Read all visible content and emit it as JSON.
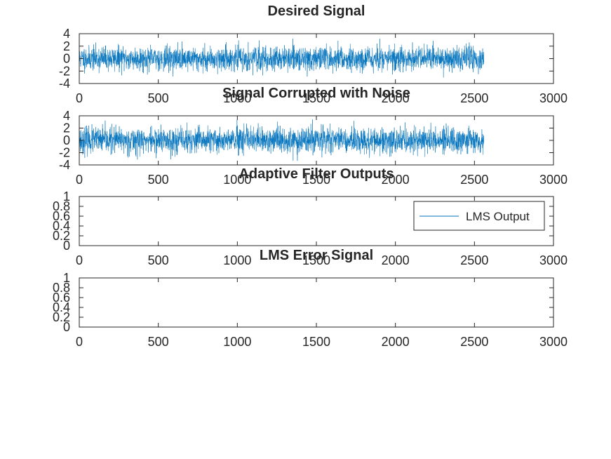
{
  "chart_data": [
    {
      "type": "line",
      "title": "Desired Signal",
      "xlabel": "",
      "ylabel": "",
      "xlim": [
        0,
        3000
      ],
      "ylim": [
        -4,
        4
      ],
      "xticks": [
        "0",
        "500",
        "1000",
        "1500",
        "2000",
        "2500",
        "3000"
      ],
      "yticks": [
        "4",
        "2",
        "0",
        "-2",
        "-4"
      ],
      "grid": false,
      "series": [
        {
          "color": "#0072bd",
          "signal": {
            "n": 2560,
            "mean": 0,
            "std": 0.95,
            "min": -3.3,
            "max": 3.2,
            "seed": 11
          }
        }
      ]
    },
    {
      "type": "line",
      "title": "Signal Corrupted with Noise",
      "xlabel": "",
      "ylabel": "",
      "xlim": [
        0,
        3000
      ],
      "ylim": [
        -4,
        4
      ],
      "xticks": [
        "0",
        "500",
        "1000",
        "1500",
        "2000",
        "2500",
        "3000"
      ],
      "yticks": [
        "4",
        "2",
        "0",
        "-2",
        "-4"
      ],
      "grid": false,
      "series": [
        {
          "color": "#0072bd",
          "signal": {
            "n": 2560,
            "mean": 0,
            "std": 1.05,
            "min": -3.8,
            "max": 3.6,
            "seed": 23
          }
        }
      ]
    },
    {
      "type": "line",
      "title": "Adaptive Filter Outputs",
      "xlabel": "",
      "ylabel": "",
      "xlim": [
        0,
        3000
      ],
      "ylim": [
        0,
        1
      ],
      "xticks": [
        "0",
        "500",
        "1000",
        "1500",
        "2000",
        "2500",
        "3000"
      ],
      "yticks": [
        "1",
        "0.8",
        "0.6",
        "0.4",
        "0.2",
        "0"
      ],
      "grid": false,
      "legend_position": "top-right",
      "series": [
        {
          "name": "LMS Output",
          "color": "#0072bd",
          "values": []
        }
      ]
    },
    {
      "type": "line",
      "title": "LMS Error Signal",
      "xlabel": "",
      "ylabel": "",
      "xlim": [
        0,
        3000
      ],
      "ylim": [
        0,
        1
      ],
      "xticks": [
        "0",
        "500",
        "1000",
        "1500",
        "2000",
        "2500",
        "3000"
      ],
      "yticks": [
        "1",
        "0.8",
        "0.6",
        "0.4",
        "0.2",
        "0"
      ],
      "grid": false,
      "series": []
    }
  ]
}
